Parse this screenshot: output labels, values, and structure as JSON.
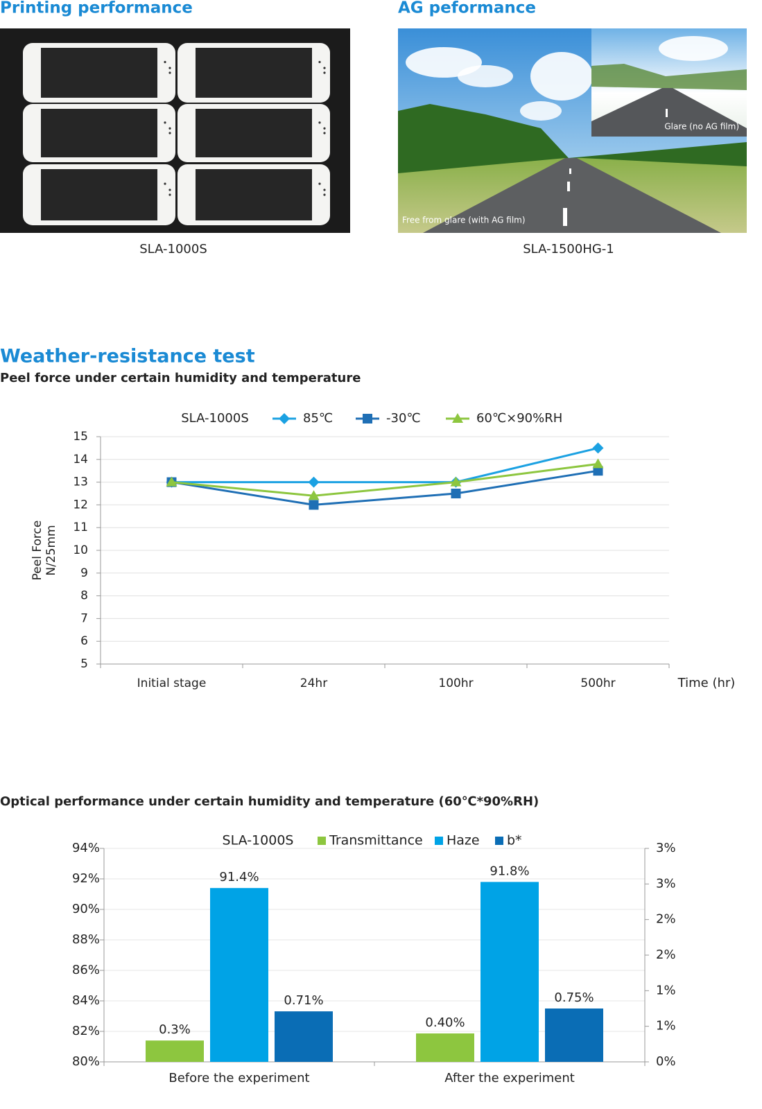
{
  "printing": {
    "title": "Printing performance",
    "caption": "SLA-1000S"
  },
  "ag": {
    "title": "AG peformance",
    "caption": "SLA-1500HG-1",
    "inset_label": "Glare (no AG film)",
    "main_label": "Free from glare (with AG film)"
  },
  "weather": {
    "title": "Weather-resistance test"
  },
  "chart_data": [
    {
      "type": "line",
      "title": "Peel force under certain humidity and temperature",
      "legend_title": "SLA-1000S",
      "ylabel": [
        "Peel Force",
        "N/25mm"
      ],
      "xlabel": "Time (hr)",
      "categories": [
        "Initial stage",
        "24hr",
        "100hr",
        "500hr"
      ],
      "series": [
        {
          "name": "85℃",
          "color": "#1ba1e2",
          "marker": "diamond",
          "values": [
            13,
            13,
            13,
            14.5
          ]
        },
        {
          "name": "-30℃",
          "color": "#1f6fb5",
          "marker": "square",
          "values": [
            13,
            12,
            12.5,
            13.5
          ]
        },
        {
          "name": "60℃×90%RH",
          "color": "#8dc63f",
          "marker": "triangle",
          "values": [
            13,
            12.4,
            13,
            13.8
          ]
        }
      ],
      "ylim": [
        5,
        15
      ],
      "yticks": [
        5,
        6,
        7,
        8,
        9,
        10,
        11,
        12,
        13,
        14,
        15
      ],
      "grid": true
    },
    {
      "type": "bar",
      "title": "Optical performance under certain humidity and temperature (60℃*90%RH)",
      "legend_title": "SLA-1000S",
      "categories": [
        "Before the experiment",
        "After the experiment"
      ],
      "series": [
        {
          "name": "Transmittance",
          "color": "#8dc63f",
          "axis": "y2",
          "values": [
            0.3,
            0.4
          ],
          "value_labels": [
            "0.3%",
            "0.40%"
          ]
        },
        {
          "name": "Haze",
          "color": "#00a3e6",
          "values": [
            91.4,
            91.8
          ],
          "value_labels": [
            "91.4%",
            "91.8%"
          ]
        },
        {
          "name": "b*",
          "color": "#0a6db5",
          "axis": "y2",
          "values": [
            0.71,
            0.75
          ],
          "value_labels": [
            "0.71%",
            "0.75%"
          ]
        }
      ],
      "ylim": [
        80,
        94
      ],
      "yticks": [
        {
          "value": 80,
          "label": "80%"
        },
        {
          "value": 82,
          "label": "82%"
        },
        {
          "value": 84,
          "label": "84%"
        },
        {
          "value": 86,
          "label": "86%"
        },
        {
          "value": 88,
          "label": "88%"
        },
        {
          "value": 90,
          "label": "90%"
        },
        {
          "value": 92,
          "label": "92%"
        },
        {
          "value": 94,
          "label": "94%"
        }
      ],
      "y2lim": [
        0,
        3
      ],
      "y2ticks": [
        {
          "value": 0,
          "label": "0%"
        },
        {
          "value": 0.5,
          "label": "1%"
        },
        {
          "value": 1,
          "label": "1%"
        },
        {
          "value": 1.5,
          "label": "2%"
        },
        {
          "value": 2,
          "label": "2%"
        },
        {
          "value": 2.5,
          "label": "3%"
        },
        {
          "value": 3,
          "label": "3%"
        }
      ],
      "grid": true
    }
  ]
}
